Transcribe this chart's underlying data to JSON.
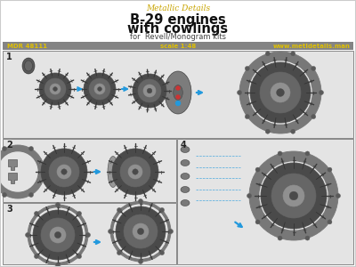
{
  "bg_color": "#f0f0f0",
  "white": "#ffffff",
  "brand_text": "Metallic Details",
  "brand_color": "#c8a400",
  "brand_fontsize": 6.5,
  "title_line1": "B-29 engines",
  "title_line2": "with cowlings",
  "title_fontsize": 10.5,
  "title_color": "#111111",
  "subtitle": "for  Revell/Monogram kits",
  "subtitle_fontsize": 6,
  "subtitle_color": "#444444",
  "info_bar_color": "#848484",
  "info_bar_text_color": "#e0c000",
  "info_bar_left": "MDR 48111",
  "info_bar_center": "scale 1:48",
  "info_bar_right": "www.metldetails.man",
  "info_bar_fontsize": 5,
  "panel_border_color": "#888888",
  "panel_bg_color": "#e4e4e4",
  "label_color": "#222222",
  "label_fontsize": 7,
  "arrow_color": "#2299dd",
  "engine_dark": "#4a4a4a",
  "engine_mid": "#666666",
  "engine_light": "#909090",
  "engine_highlight": "#aaaaaa",
  "cowling_color": "#6a6a6a",
  "cowling_ring": "#787878",
  "fin_color": "#3a3a3a"
}
